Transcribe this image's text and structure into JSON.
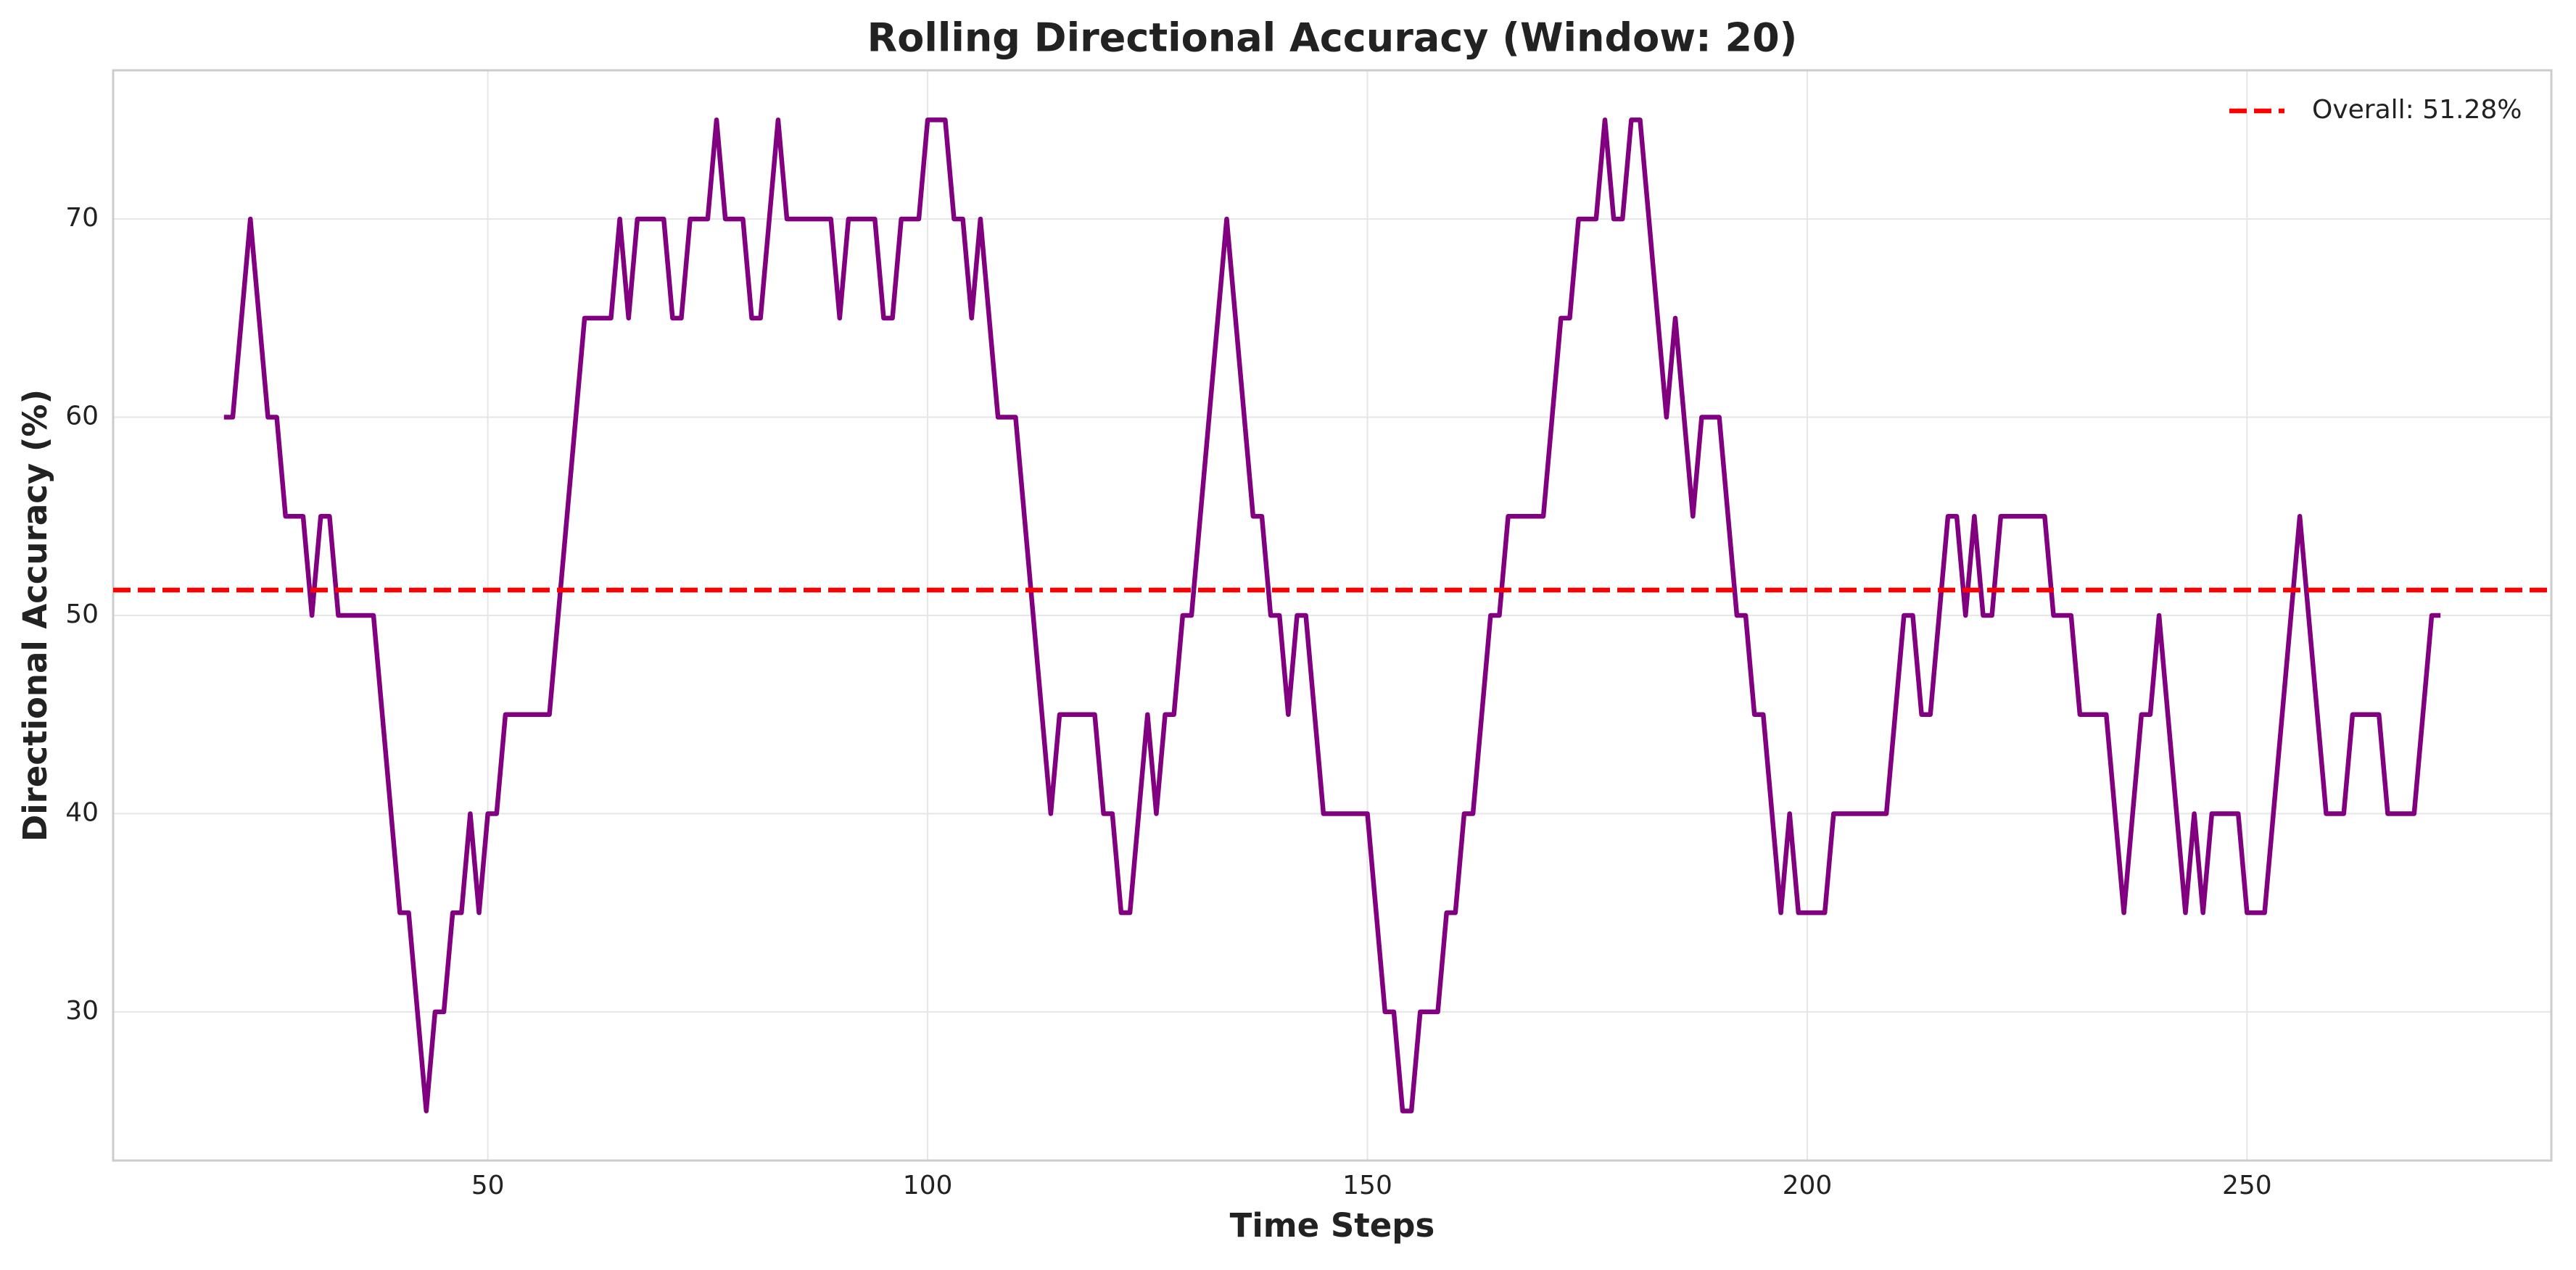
{
  "chart_data": {
    "type": "line",
    "title": "Rolling Directional Accuracy (Window: 20)",
    "xlabel": "Time Steps",
    "ylabel": "Directional Accuracy (%)",
    "x": [
      20,
      21,
      22,
      23,
      24,
      25,
      26,
      27,
      28,
      29,
      30,
      31,
      32,
      33,
      34,
      35,
      36,
      37,
      38,
      39,
      40,
      41,
      42,
      43,
      44,
      45,
      46,
      47,
      48,
      49,
      50,
      51,
      52,
      53,
      54,
      55,
      56,
      57,
      58,
      59,
      60,
      61,
      62,
      63,
      64,
      65,
      66,
      67,
      68,
      69,
      70,
      71,
      72,
      73,
      74,
      75,
      76,
      77,
      78,
      79,
      80,
      81,
      82,
      83,
      84,
      85,
      86,
      87,
      88,
      89,
      90,
      91,
      92,
      93,
      94,
      95,
      96,
      97,
      98,
      99,
      100,
      101,
      102,
      103,
      104,
      105,
      106,
      107,
      108,
      109,
      110,
      111,
      112,
      113,
      114,
      115,
      116,
      117,
      118,
      119,
      120,
      121,
      122,
      123,
      124,
      125,
      126,
      127,
      128,
      129,
      130,
      131,
      132,
      133,
      134,
      135,
      136,
      137,
      138,
      139,
      140,
      141,
      142,
      143,
      144,
      145,
      146,
      147,
      148,
      149,
      150,
      151,
      152,
      153,
      154,
      155,
      156,
      157,
      158,
      159,
      160,
      161,
      162,
      163,
      164,
      165,
      166,
      167,
      168,
      169,
      170,
      171,
      172,
      173,
      174,
      175,
      176,
      177,
      178,
      179,
      180,
      181,
      182,
      183,
      184,
      185,
      186,
      187,
      188,
      189,
      190,
      191,
      192,
      193,
      194,
      195,
      196,
      197,
      198,
      199,
      200,
      201,
      202,
      203,
      204,
      205,
      206,
      207,
      208,
      209,
      210,
      211,
      212,
      213,
      214,
      215,
      216,
      217,
      218,
      219,
      220,
      221,
      222,
      223,
      224,
      225,
      226,
      227,
      228,
      229,
      230,
      231,
      232,
      233,
      234,
      235,
      236,
      237,
      238,
      239,
      240,
      241,
      242,
      243,
      244,
      245,
      246,
      247,
      248,
      249,
      250,
      251,
      252,
      253,
      254,
      255,
      256,
      257,
      258,
      259,
      260,
      261,
      262,
      263,
      264,
      265,
      266,
      267,
      268,
      269,
      270,
      271,
      272
    ],
    "series": [
      {
        "color": "#800080",
        "values": [
          60,
          60,
          65,
          70,
          65,
          60,
          60,
          55,
          55,
          55,
          50,
          55,
          55,
          50,
          50,
          50,
          50,
          50,
          45,
          40,
          35,
          35,
          30,
          25,
          30,
          30,
          35,
          35,
          40,
          35,
          40,
          40,
          45,
          45,
          45,
          45,
          45,
          45,
          50,
          55,
          60,
          65,
          65,
          65,
          65,
          70,
          65,
          70,
          70,
          70,
          70,
          65,
          65,
          70,
          70,
          70,
          75,
          70,
          70,
          70,
          65,
          65,
          70,
          75,
          70,
          70,
          70,
          70,
          70,
          70,
          65,
          70,
          70,
          70,
          70,
          65,
          65,
          70,
          70,
          70,
          75,
          75,
          75,
          70,
          70,
          65,
          70,
          65,
          60,
          60,
          60,
          55,
          50,
          45,
          40,
          45,
          45,
          45,
          45,
          45,
          40,
          40,
          35,
          35,
          40,
          45,
          40,
          45,
          45,
          50,
          50,
          55,
          60,
          65,
          70,
          65,
          60,
          55,
          55,
          50,
          50,
          45,
          50,
          50,
          45,
          40,
          40,
          40,
          40,
          40,
          40,
          35,
          30,
          30,
          25,
          25,
          30,
          30,
          30,
          35,
          35,
          40,
          40,
          45,
          50,
          50,
          55,
          55,
          55,
          55,
          55,
          60,
          65,
          65,
          70,
          70,
          70,
          75,
          70,
          70,
          75,
          75,
          70,
          65,
          60,
          65,
          60,
          55,
          60,
          60,
          60,
          55,
          50,
          50,
          45,
          45,
          40,
          35,
          40,
          35,
          35,
          35,
          35,
          40,
          40,
          40,
          40,
          40,
          40,
          40,
          45,
          50,
          50,
          45,
          45,
          50,
          55,
          55,
          50,
          55,
          50,
          50,
          55,
          55,
          55,
          55,
          55,
          55,
          50,
          50,
          50,
          45,
          45,
          45,
          45,
          40,
          35,
          40,
          45,
          45,
          50,
          45,
          40,
          35,
          40,
          35,
          40,
          40,
          40,
          40,
          35,
          35,
          35,
          40,
          45,
          50,
          55,
          50,
          45,
          40,
          40,
          40,
          45,
          45,
          45,
          45,
          40,
          40,
          40,
          40,
          45,
          50,
          50
        ]
      }
    ],
    "hlines": [
      {
        "name": "Overall: 51.28%",
        "value": 51.28,
        "color": "#ff0000",
        "style": "dashed"
      }
    ],
    "xlim": [
      7.4,
      284.6
    ],
    "ylim": [
      22.5,
      77.5
    ],
    "xticks": [
      50,
      100,
      150,
      200,
      250
    ],
    "yticks": [
      30,
      40,
      50,
      60,
      70
    ],
    "grid": true,
    "legend": "upper right"
  }
}
